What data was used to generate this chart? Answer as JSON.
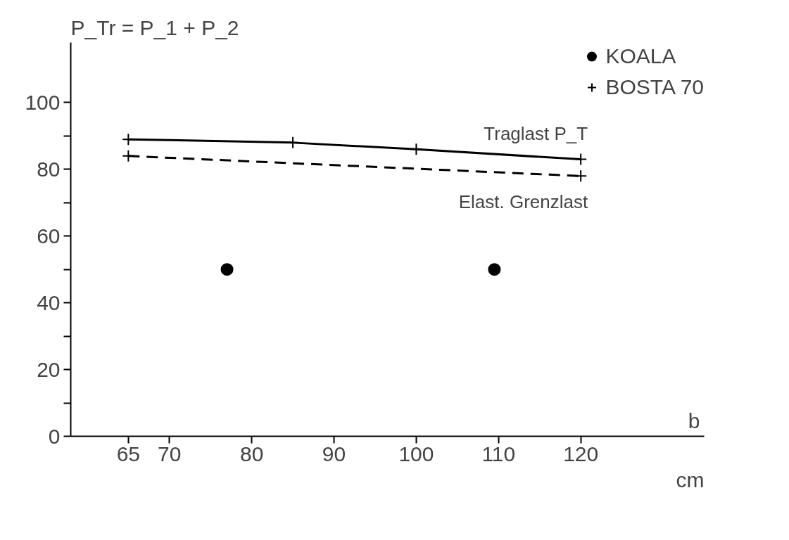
{
  "chart_data": {
    "type": "line",
    "ylabel": "P_Tr = P_1 + P_2",
    "xlabel": "b",
    "xlim": [
      58,
      135
    ],
    "ylim": [
      0,
      118
    ],
    "xticks": [
      65,
      70,
      80,
      90,
      100,
      110,
      120
    ],
    "yticks": [
      0,
      {
        "value": 10,
        "label": null
      },
      20,
      {
        "value": 30,
        "label": null
      },
      40,
      {
        "value": 50,
        "label": null
      },
      60,
      {
        "value": 70,
        "label": null
      },
      80,
      {
        "value": 90,
        "label": null
      },
      100
    ],
    "series": [
      {
        "name": "KOALA",
        "type": "scatter",
        "marker": "circle",
        "color": "#000000",
        "x": [
          77,
          109.5
        ],
        "values": [
          50,
          50
        ]
      },
      {
        "name": "BOSTA 70",
        "type": "line",
        "marker": "cross",
        "line_style": "solid",
        "color": "#000000",
        "x": [
          65,
          85,
          100,
          120
        ],
        "values": [
          89,
          88,
          86,
          83
        ]
      },
      {
        "type": "line",
        "marker": "cross",
        "line_style": "dashed",
        "color": "#000000",
        "x": [
          65,
          120
        ],
        "values": [
          84,
          78
        ]
      }
    ],
    "annotations": [
      "Traglast P_T",
      "Elast. Grenzlast",
      "cm"
    ],
    "legend": "top right",
    "grid": false
  }
}
